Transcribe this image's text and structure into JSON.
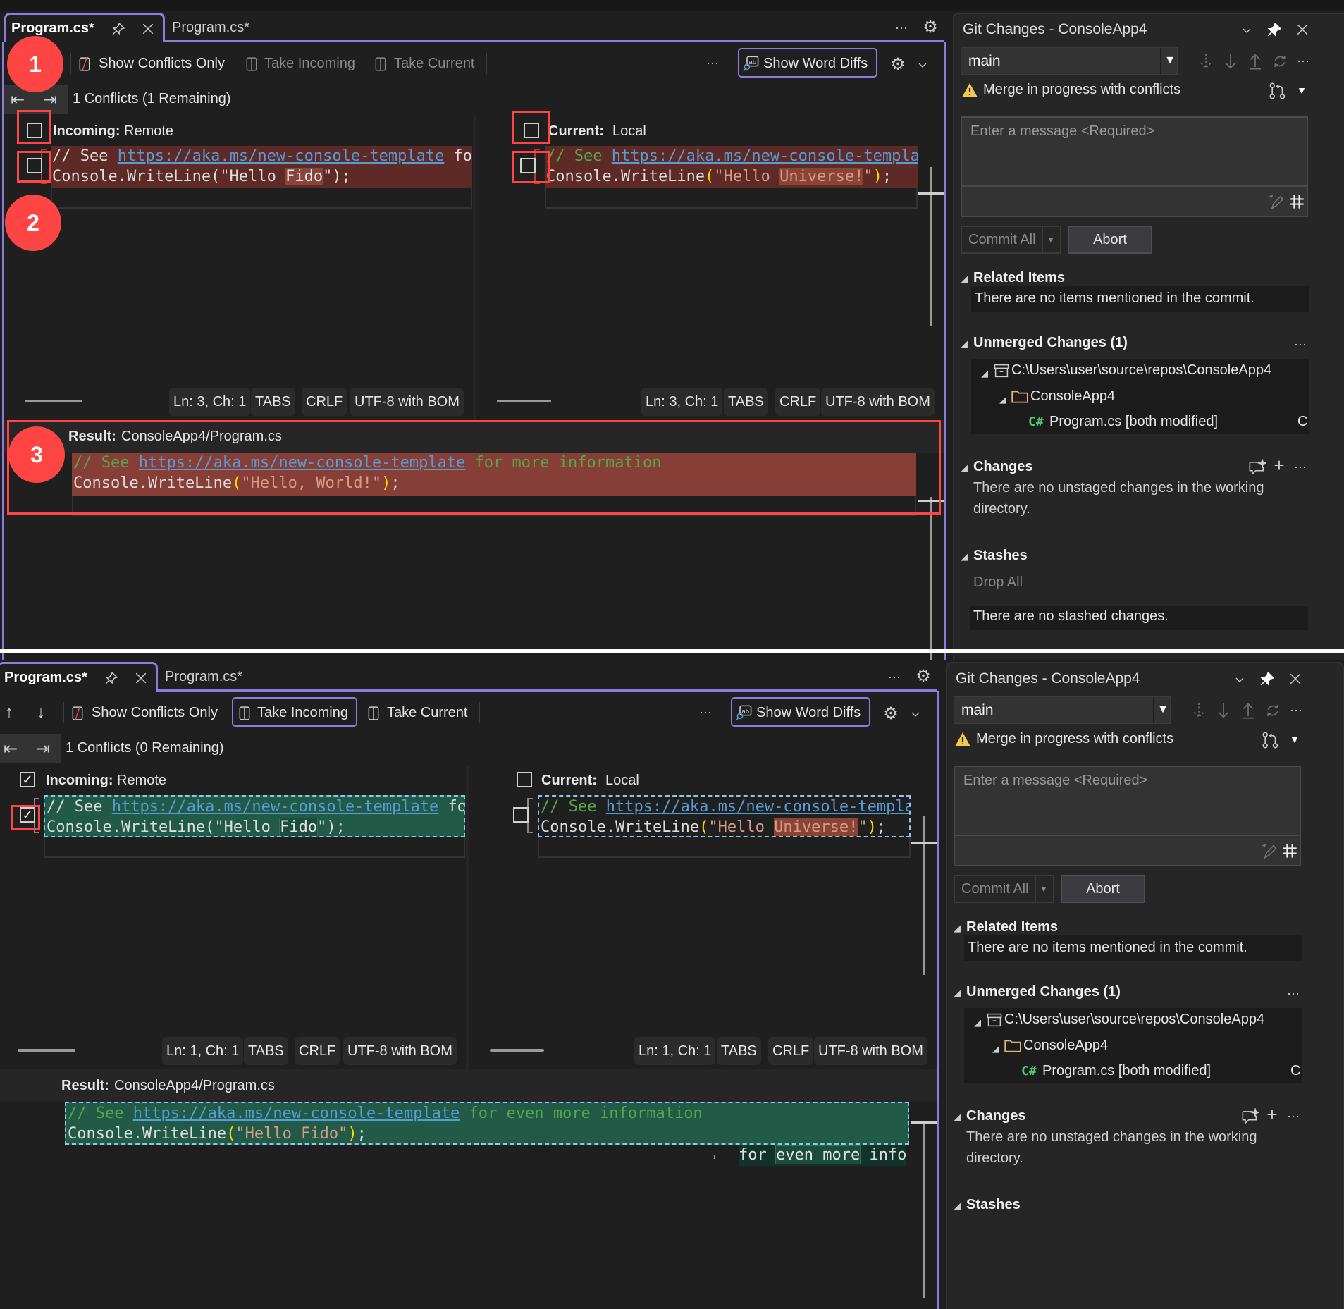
{
  "windows": [
    {
      "tabs": [
        "Program.cs*",
        "Program.cs*"
      ],
      "toolbar": {
        "show_conflicts_only": "Show Conflicts Only",
        "take_incoming": "Take Incoming",
        "take_current": "Take Current",
        "take_enabled": false,
        "take_incoming_selected": false,
        "show_word_diffs": "Show Word Diffs",
        "more": "···"
      },
      "nav": {
        "conflicts": "1 Conflicts (1 Remaining)"
      },
      "incoming": {
        "label": "Incoming:",
        "source": "Remote",
        "checked": false,
        "line_checked": false,
        "lines": [
          [
            {
              "t": "// See ",
              "c": "plain"
            },
            {
              "t": "https://aka.ms/new-console-template",
              "c": "link"
            },
            {
              "t": " fo",
              "c": "plain"
            }
          ],
          [
            {
              "t": "Console.WriteLine(\"Hello ",
              "c": "plain"
            },
            {
              "t": "Fido",
              "c": "hl-red"
            },
            {
              "t": "\");",
              "c": "plain"
            }
          ]
        ],
        "status": [
          "Ln: 3, Ch: 1",
          "TABS",
          "CRLF",
          "UTF-8 with BOM"
        ]
      },
      "current": {
        "label": "Current:",
        "source": "Local",
        "checked": false,
        "line_checked": false,
        "lines": [
          [
            {
              "t": "// See ",
              "c": "comment"
            },
            {
              "t": "https://aka.ms/new-console-templa",
              "c": "link"
            }
          ],
          [
            {
              "t": "Console.WriteLine",
              "c": "plain"
            },
            {
              "t": "(",
              "c": "paren"
            },
            {
              "t": "\"Hello ",
              "c": "string"
            },
            {
              "t": "Universe!",
              "c": "str-hl"
            },
            {
              "t": "\"",
              "c": "string"
            },
            {
              "t": ")",
              "c": "paren"
            },
            {
              "t": ";",
              "c": "plain"
            }
          ]
        ],
        "status": [
          "Ln: 3, Ch: 1",
          "TABS",
          "CRLF",
          "UTF-8 with BOM"
        ]
      },
      "result": {
        "label": "Result:",
        "path": "ConsoleApp4/Program.cs",
        "lines": [
          [
            {
              "t": "// See ",
              "c": "comment"
            },
            {
              "t": "https://aka.ms/new-console-template",
              "c": "link"
            },
            {
              "t": " for more information",
              "c": "comment"
            }
          ],
          [
            {
              "t": "Console.WriteLine",
              "c": "plain"
            },
            {
              "t": "(",
              "c": "paren"
            },
            {
              "t": "\"Hello, World!\"",
              "c": "string"
            },
            {
              "t": ")",
              "c": "paren"
            },
            {
              "t": ";",
              "c": "plain"
            }
          ]
        ]
      },
      "annotations": [
        "1",
        "2",
        "3"
      ],
      "git": {
        "title": "Git Changes - ConsoleApp4",
        "branch": "main",
        "merge_status": "Merge in progress with conflicts",
        "message_placeholder": "Enter a message <Required>",
        "commit_all": "Commit All",
        "abort": "Abort",
        "related_items": "Related Items",
        "related_empty": "There are no items mentioned in the commit.",
        "unmerged": "Unmerged Changes (1)",
        "repo_path": "C:\\Users\\user\\source\\repos\\ConsoleApp4",
        "project": "ConsoleApp4",
        "file_lang": "C#",
        "file": "Program.cs [both modified]",
        "file_status": "C",
        "changes": "Changes",
        "changes_empty": "There are no unstaged changes in the working directory.",
        "stashes": "Stashes",
        "drop_all": "Drop All",
        "stashes_empty": "There are no stashed changes."
      }
    },
    {
      "tabs": [
        "Program.cs*",
        "Program.cs*"
      ],
      "toolbar": {
        "show_conflicts_only": "Show Conflicts Only",
        "take_incoming": "Take Incoming",
        "take_current": "Take Current",
        "take_enabled": true,
        "take_incoming_selected": true,
        "show_word_diffs": "Show Word Diffs",
        "more": "···"
      },
      "nav": {
        "conflicts": "1 Conflicts (0 Remaining)"
      },
      "incoming": {
        "label": "Incoming:",
        "source": "Remote",
        "checked": true,
        "line_checked": true,
        "lines": [
          [
            {
              "t": "// See ",
              "c": "plain"
            },
            {
              "t": "https://aka.ms/new-console-template",
              "c": "link"
            },
            {
              "t": " fo",
              "c": "plain"
            }
          ],
          [
            {
              "t": "Console.WriteLine(\"Hello ",
              "c": "plain"
            },
            {
              "t": "Fido",
              "c": "hl-green"
            },
            {
              "t": "\");",
              "c": "plain"
            }
          ]
        ],
        "status": [
          "Ln: 1, Ch: 1",
          "TABS",
          "CRLF",
          "UTF-8 with BOM"
        ]
      },
      "current": {
        "label": "Current:",
        "source": "Local",
        "checked": false,
        "line_checked": false,
        "lines": [
          [
            {
              "t": "// See ",
              "c": "comment"
            },
            {
              "t": "https://aka.ms/new-console-templa",
              "c": "link"
            }
          ],
          [
            {
              "t": "Console.WriteLine",
              "c": "plain"
            },
            {
              "t": "(",
              "c": "paren"
            },
            {
              "t": "\"Hello ",
              "c": "string"
            },
            {
              "t": "Universe!",
              "c": "str-hl"
            },
            {
              "t": "\"",
              "c": "string"
            },
            {
              "t": ")",
              "c": "paren"
            },
            {
              "t": ";",
              "c": "plain"
            }
          ]
        ],
        "status": [
          "Ln: 1, Ch: 1",
          "TABS",
          "CRLF",
          "UTF-8 with BOM"
        ]
      },
      "result": {
        "label": "Result:",
        "path": "ConsoleApp4/Program.cs",
        "lines": [
          [
            {
              "t": "// See ",
              "c": "comment"
            },
            {
              "t": "https://aka.ms/new-console-template",
              "c": "link"
            },
            {
              "t": " for even more information",
              "c": "comment"
            }
          ],
          [
            {
              "t": "Console.WriteLine",
              "c": "plain"
            },
            {
              "t": "(",
              "c": "paren"
            },
            {
              "t": "\"Hello Fido\"",
              "c": "string"
            },
            {
              "t": ")",
              "c": "paren"
            },
            {
              "t": ";",
              "c": "plain"
            }
          ]
        ],
        "word_diff_tooltip": [
          {
            "t": "for ",
            "c": "plain"
          },
          {
            "t": "even more",
            "c": "hl-green"
          },
          {
            "t": " info",
            "c": "plain"
          }
        ]
      },
      "annotations": [],
      "git": {
        "title": "Git Changes - ConsoleApp4",
        "branch": "main",
        "merge_status": "Merge in progress with conflicts",
        "message_placeholder": "Enter a message <Required>",
        "commit_all": "Commit All",
        "abort": "Abort",
        "related_items": "Related Items",
        "related_empty": "There are no items mentioned in the commit.",
        "unmerged": "Unmerged Changes (1)",
        "repo_path": "C:\\Users\\user\\source\\repos\\ConsoleApp4",
        "project": "ConsoleApp4",
        "file_lang": "C#",
        "file": "Program.cs [both modified]",
        "file_status": "C",
        "changes": "Changes",
        "changes_empty": "There are no unstaged changes in the working directory.",
        "stashes": "Stashes"
      }
    }
  ],
  "colors": {
    "accent": "#8a7ce0",
    "annotation_red": "#ff4444",
    "conflict_bg": "#5e2a25",
    "result_conflict_bg": "#863e36",
    "accepted_bg": "#215b48",
    "warning": "#f2c94c"
  }
}
